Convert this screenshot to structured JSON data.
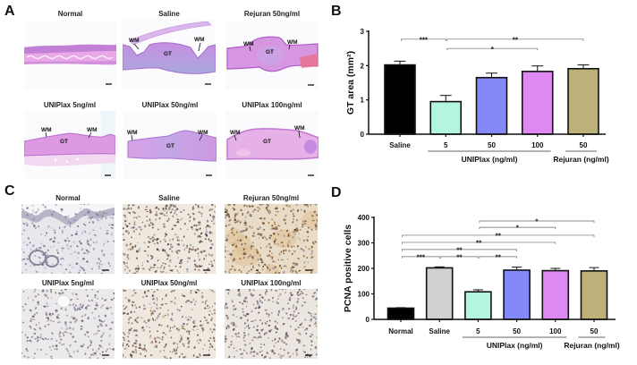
{
  "figure": {
    "A": {
      "label": "A",
      "images": [
        {
          "title": "Normal",
          "annotations": []
        },
        {
          "title": "Saline",
          "annotations": [
            "WM",
            "GT",
            "WM"
          ]
        },
        {
          "title": "Rejuran 50ng/ml",
          "annotations": [
            "WM",
            "GT",
            "WM"
          ]
        },
        {
          "title": "UNIPlax 5ng/ml",
          "annotations": [
            "WM",
            "GT",
            "WM"
          ]
        },
        {
          "title": "UNIPlax 50ng/ml",
          "annotations": [
            "WM",
            "GT",
            "WM"
          ]
        },
        {
          "title": "UNIPlax 100ng/ml",
          "annotations": [
            "WM",
            "GT",
            "WM"
          ]
        }
      ]
    },
    "B": {
      "label": "B"
    },
    "C": {
      "label": "C",
      "images": [
        {
          "title": "Normal"
        },
        {
          "title": "Saline"
        },
        {
          "title": "Rejuran 50ng/ml"
        },
        {
          "title": "UNIPlax 5ng/ml"
        },
        {
          "title": "UNIPlax 50ng/ml"
        },
        {
          "title": "UNIPlax 100ng/ml"
        }
      ]
    },
    "D": {
      "label": "D"
    }
  },
  "colors": {
    "saline_B": "#000000",
    "normal_D": "#000000",
    "saline_D": "#d0d0d0",
    "uniplax_5": "#b4f5df",
    "uniplax_50": "#8589f7",
    "uniplax_100": "#de88f2",
    "rejuran_50": "#bdb079"
  },
  "chart_data": [
    {
      "panel": "B",
      "type": "bar",
      "title": "",
      "categories": [
        "Saline",
        "5",
        "50",
        "100",
        "50"
      ],
      "groups": [
        {
          "label": "UNIPlax (ng/ml)",
          "span": [
            1,
            3
          ]
        },
        {
          "label": "Rejuran (ng/ml)",
          "span": [
            4,
            4
          ]
        }
      ],
      "values": [
        2.02,
        0.95,
        1.65,
        1.83,
        1.91
      ],
      "errors": [
        0.11,
        0.18,
        0.13,
        0.16,
        0.11
      ],
      "colors": [
        "#000000",
        "#b4f5df",
        "#8589f7",
        "#de88f2",
        "#bdb079"
      ],
      "xlabel": "",
      "ylabel": "GT area (mm²)",
      "ylim": [
        0,
        3
      ],
      "yticks": [
        0,
        1,
        2,
        3
      ],
      "grid": false,
      "legend": "none",
      "significance": [
        {
          "from": 0,
          "to": 1,
          "label": "***",
          "y": 2.77
        },
        {
          "from": 1,
          "to": 4,
          "label": "**",
          "y": 2.77
        },
        {
          "from": 1,
          "to": 3,
          "label": "*",
          "y": 2.5
        }
      ]
    },
    {
      "panel": "D",
      "type": "bar",
      "title": "",
      "categories": [
        "Normal",
        "Saline",
        "5",
        "50",
        "100",
        "50"
      ],
      "groups": [
        {
          "label": "UNIPlax (ng/ml)",
          "span": [
            2,
            4
          ]
        },
        {
          "label": "Rejuran (ng/ml)",
          "span": [
            5,
            5
          ]
        }
      ],
      "values": [
        44,
        202,
        108,
        193,
        191,
        190
      ],
      "errors": [
        2,
        4,
        8,
        12,
        9,
        13
      ],
      "colors": [
        "#000000",
        "#d0d0d0",
        "#b4f5df",
        "#8589f7",
        "#de88f2",
        "#bdb079"
      ],
      "xlabel": "",
      "ylabel": "PCNA positive cells",
      "ylim": [
        0,
        400
      ],
      "yticks": [
        0,
        100,
        200,
        300,
        400
      ],
      "grid": false,
      "legend": "none",
      "significance": [
        {
          "from": 2,
          "to": 5,
          "label": "*",
          "y": 386
        },
        {
          "from": 2,
          "to": 4,
          "label": "*",
          "y": 361
        },
        {
          "from": 0,
          "to": 5,
          "label": "**",
          "y": 330
        },
        {
          "from": 0,
          "to": 4,
          "label": "**",
          "y": 302
        },
        {
          "from": 0,
          "to": 3,
          "label": "**",
          "y": 274
        },
        {
          "from": 0,
          "to": 1,
          "label": "***",
          "y": 246
        },
        {
          "from": 1,
          "to": 2,
          "label": "**",
          "y": 246
        },
        {
          "from": 2,
          "to": 3,
          "label": "**",
          "y": 246
        }
      ]
    }
  ]
}
